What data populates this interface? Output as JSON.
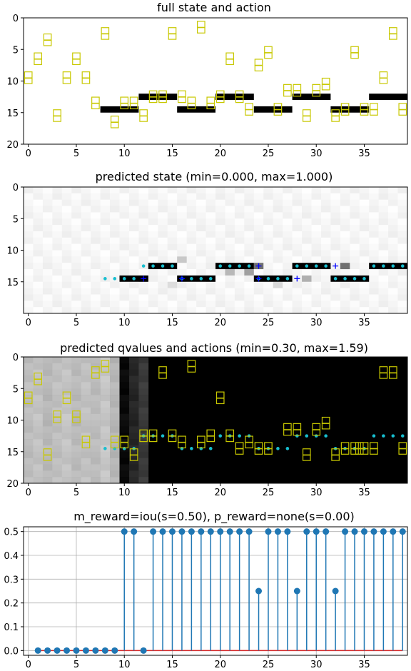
{
  "chart_data": [
    {
      "type": "heatmap",
      "title": "full state and action",
      "xlim": [
        0,
        39
      ],
      "ylim": [
        20,
        0
      ],
      "xticks": [
        0,
        5,
        10,
        15,
        20,
        25,
        30,
        35
      ],
      "yticks": [
        0,
        5,
        10,
        15,
        20
      ],
      "bars": [
        {
          "x0": 8,
          "x1": 11,
          "y": 14
        },
        {
          "x0": 12,
          "x1": 15,
          "y": 12
        },
        {
          "x0": 16,
          "x1": 19,
          "y": 14
        },
        {
          "x0": 20,
          "x1": 23,
          "y": 12
        },
        {
          "x0": 24,
          "x1": 27,
          "y": 14
        },
        {
          "x0": 28,
          "x1": 31,
          "y": 12
        },
        {
          "x0": 32,
          "x1": 35,
          "y": 14
        },
        {
          "x0": 36,
          "x1": 39,
          "y": 12
        }
      ],
      "actions": [
        [
          0,
          9.5
        ],
        [
          1,
          6.5
        ],
        [
          2,
          3.5
        ],
        [
          3,
          15.5
        ],
        [
          4,
          9.5
        ],
        [
          5,
          6.5
        ],
        [
          6,
          9.5
        ],
        [
          7,
          13.5
        ],
        [
          8,
          2.5
        ],
        [
          9,
          16.5
        ],
        [
          10,
          13.5
        ],
        [
          11,
          13.5
        ],
        [
          12,
          15.5
        ],
        [
          13,
          12.5
        ],
        [
          14,
          12.5
        ],
        [
          15,
          2.5
        ],
        [
          16,
          12.5
        ],
        [
          17,
          13.5
        ],
        [
          18,
          1.5
        ],
        [
          19,
          13.5
        ],
        [
          20,
          12.5
        ],
        [
          21,
          6.5
        ],
        [
          22,
          12.5
        ],
        [
          23,
          14.5
        ],
        [
          24,
          7.5
        ],
        [
          25,
          5.5
        ],
        [
          26,
          14.5
        ],
        [
          27,
          11.5
        ],
        [
          28,
          11.5
        ],
        [
          29,
          15.5
        ],
        [
          30,
          11.5
        ],
        [
          31,
          10.5
        ],
        [
          32,
          15.5
        ],
        [
          33,
          14.5
        ],
        [
          34,
          5.5
        ],
        [
          35,
          14.5
        ],
        [
          36,
          14.5
        ],
        [
          37,
          9.5
        ],
        [
          38,
          2.5
        ],
        [
          39,
          14.5
        ]
      ],
      "action_color": "#c8c800",
      "bar_color": "#000000"
    },
    {
      "type": "heatmap",
      "title": "predicted state (min=0.000, max=1.000)",
      "xlim": [
        0,
        39
      ],
      "ylim": [
        20,
        0
      ],
      "xticks": [
        0,
        5,
        10,
        15,
        20,
        25,
        30,
        35
      ],
      "yticks": [
        0,
        5,
        10,
        15
      ],
      "bars": [
        {
          "x0": 10,
          "x1": 12,
          "y": 14
        },
        {
          "x0": 13,
          "x1": 15,
          "y": 12
        },
        {
          "x0": 16,
          "x1": 19,
          "y": 14
        },
        {
          "x0": 20,
          "x1": 23,
          "y": 12
        },
        {
          "x0": 24,
          "x1": 27,
          "y": 14
        },
        {
          "x0": 28,
          "x1": 31,
          "y": 12
        },
        {
          "x0": 32,
          "x1": 35,
          "y": 14
        },
        {
          "x0": 36,
          "x1": 39,
          "y": 12
        }
      ],
      "gray_cells": [
        [
          16,
          11,
          "#c8c8c8"
        ],
        [
          24,
          12,
          "#707070"
        ],
        [
          23,
          13,
          "#a0a0a0"
        ],
        [
          21,
          13,
          "#b8b8b8"
        ],
        [
          29,
          14,
          "#b0b0b0"
        ],
        [
          12,
          14,
          "#a8a8a8"
        ],
        [
          33,
          12,
          "#707070"
        ],
        [
          19,
          14,
          "#c0c0c0"
        ],
        [
          26,
          15,
          "#d8d8d8"
        ],
        [
          15,
          15,
          "#dddddd"
        ]
      ],
      "cyan_dots": [
        [
          8,
          14
        ],
        [
          9,
          14
        ],
        [
          10,
          14
        ],
        [
          11,
          14
        ],
        [
          12,
          12
        ],
        [
          13,
          12
        ],
        [
          14,
          12
        ],
        [
          15,
          12
        ],
        [
          16,
          14
        ],
        [
          17,
          14
        ],
        [
          18,
          14
        ],
        [
          19,
          14
        ],
        [
          20,
          12
        ],
        [
          21,
          12
        ],
        [
          22,
          12
        ],
        [
          23,
          12
        ],
        [
          24,
          14
        ],
        [
          25,
          14
        ],
        [
          26,
          14
        ],
        [
          27,
          14
        ],
        [
          28,
          12
        ],
        [
          29,
          12
        ],
        [
          30,
          12
        ],
        [
          31,
          12
        ],
        [
          32,
          14
        ],
        [
          33,
          14
        ],
        [
          34,
          14
        ],
        [
          35,
          14
        ],
        [
          36,
          12
        ],
        [
          37,
          12
        ],
        [
          38,
          12
        ],
        [
          39,
          12
        ]
      ],
      "plus_marks": [
        [
          12,
          14
        ],
        [
          24,
          12
        ],
        [
          24,
          14
        ],
        [
          28,
          14
        ],
        [
          32,
          12
        ],
        [
          16,
          14
        ]
      ],
      "dot_color": "#17becf",
      "plus_color": "#0000ff"
    },
    {
      "type": "heatmap",
      "title": "predicted qvalues and actions (min=0.30, max=1.59)",
      "xlim": [
        0,
        39
      ],
      "ylim": [
        20,
        0
      ],
      "xticks": [
        0,
        5,
        10,
        15,
        20,
        25,
        30,
        35
      ],
      "yticks": [
        0,
        5,
        10,
        15,
        20
      ],
      "column_shades": [
        "#bdbdbd",
        "#c2c2c2",
        "#b8b8b8",
        "#bfbfbf",
        "#c4c4c4",
        "#bababa",
        "#c1c1c1",
        "#bcbcbc",
        "#c6c6c6",
        "#b6b6b6",
        "#0a0a0a",
        "#262626",
        "#3a3a3a"
      ],
      "actions": [
        [
          0,
          6.5
        ],
        [
          1,
          3.5
        ],
        [
          2,
          15.5
        ],
        [
          3,
          9.5
        ],
        [
          4,
          6.5
        ],
        [
          5,
          9.5
        ],
        [
          6,
          13.5
        ],
        [
          7,
          2.5
        ],
        [
          8,
          1.5
        ],
        [
          9,
          13.5
        ],
        [
          10,
          13.5
        ],
        [
          11,
          15.5
        ],
        [
          12,
          12.5
        ],
        [
          13,
          12.5
        ],
        [
          14,
          2.5
        ],
        [
          15,
          12.5
        ],
        [
          16,
          13.5
        ],
        [
          17,
          1.5
        ],
        [
          18,
          13.5
        ],
        [
          19,
          12.5
        ],
        [
          20,
          6.5
        ],
        [
          21,
          12.5
        ],
        [
          22,
          14.5
        ],
        [
          23,
          13.5
        ],
        [
          24,
          14.5
        ],
        [
          25,
          14.5
        ],
        [
          27,
          11.5
        ],
        [
          28,
          11.5
        ],
        [
          29,
          15.5
        ],
        [
          30,
          11.5
        ],
        [
          31,
          10.5
        ],
        [
          32,
          15.5
        ],
        [
          33,
          14.5
        ],
        [
          34,
          14.5
        ],
        [
          35,
          14.5
        ],
        [
          36,
          14.5
        ],
        [
          37,
          2.5
        ],
        [
          38,
          2.5
        ],
        [
          39,
          14.5
        ],
        [
          34.5,
          14.5
        ]
      ],
      "cyan_dots": [
        [
          8,
          14
        ],
        [
          9,
          14
        ],
        [
          10,
          14
        ],
        [
          11,
          14
        ],
        [
          12,
          12
        ],
        [
          13,
          12
        ],
        [
          14,
          12
        ],
        [
          15,
          12
        ],
        [
          16,
          14
        ],
        [
          17,
          14
        ],
        [
          18,
          14
        ],
        [
          19,
          14
        ],
        [
          20,
          12
        ],
        [
          21,
          12
        ],
        [
          22,
          12
        ],
        [
          23,
          12
        ],
        [
          24,
          14
        ],
        [
          25,
          14
        ],
        [
          26,
          14
        ],
        [
          27,
          14
        ],
        [
          28,
          12
        ],
        [
          29,
          12
        ],
        [
          30,
          12
        ],
        [
          31,
          12
        ],
        [
          32,
          14
        ],
        [
          33,
          14
        ],
        [
          34,
          14
        ],
        [
          35,
          14
        ],
        [
          36,
          12
        ],
        [
          37,
          12
        ],
        [
          38,
          12
        ],
        [
          39,
          12
        ]
      ],
      "action_color": "#c8c800",
      "dot_color": "#17becf"
    },
    {
      "type": "stem",
      "title": "m_reward=iou(s=0.50), p_reward=none(s=0.00)",
      "xlim": [
        0,
        39
      ],
      "ylim": [
        -0.02,
        0.52
      ],
      "xticks": [
        0,
        5,
        10,
        15,
        20,
        25,
        30,
        35
      ],
      "yticks": [
        0.0,
        0.1,
        0.2,
        0.3,
        0.4,
        0.5
      ],
      "ytick_labels": [
        "0.0",
        "0.1",
        "0.2",
        "0.3",
        "0.4",
        "0.5"
      ],
      "x": [
        1,
        2,
        3,
        4,
        5,
        6,
        7,
        8,
        9,
        10,
        11,
        12,
        13,
        14,
        15,
        16,
        17,
        18,
        19,
        20,
        21,
        22,
        23,
        24,
        25,
        26,
        27,
        28,
        29,
        30,
        31,
        32,
        33,
        34,
        35,
        36,
        37,
        38,
        39
      ],
      "values": [
        0,
        0,
        0,
        0,
        0,
        0,
        0,
        0,
        0,
        0.5,
        0.5,
        0,
        0.5,
        0.5,
        0.5,
        0.5,
        0.5,
        0.5,
        0.5,
        0.5,
        0.5,
        0.5,
        0.5,
        0.25,
        0.5,
        0.5,
        0.5,
        0.25,
        0.5,
        0.5,
        0.5,
        0.25,
        0.5,
        0.5,
        0.5,
        0.5,
        0.5,
        0.5,
        0.5
      ],
      "stem_color": "#1f77b4",
      "baseline_color": "#d62728",
      "grid": true
    }
  ]
}
